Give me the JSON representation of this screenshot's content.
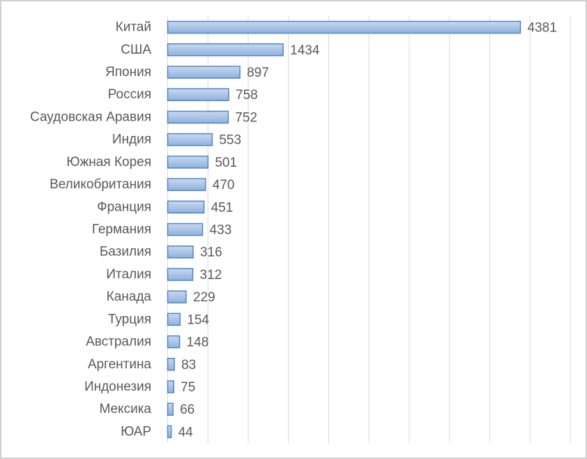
{
  "chart_data": {
    "type": "bar",
    "orientation": "horizontal",
    "title": "",
    "xlabel": "",
    "ylabel": "",
    "xlim": [
      0,
      5000
    ],
    "grid": "vertical",
    "legend": "none",
    "colors": {
      "bar_fill_light": "#c9d9ef",
      "bar_fill_dark": "#8fb1dd",
      "bar_stroke": "#4f86c6",
      "grid": "#d9d9d9",
      "text": "#595959",
      "border": "#bfbfbf"
    },
    "categories": [
      "Китай",
      "США",
      "Япония",
      "Россия",
      "Саудовская Аравия",
      "Индия",
      "Южная Корея",
      "Великобритания",
      "Франция",
      "Германия",
      "Базилия",
      "Италия",
      "Канада",
      "Турция",
      "Австралия",
      "Аргентина",
      "Индонезия",
      "Мексика",
      "ЮАР"
    ],
    "values": [
      4381,
      1434,
      897,
      758,
      752,
      553,
      501,
      470,
      451,
      433,
      316,
      312,
      229,
      154,
      148,
      83,
      75,
      66,
      44
    ]
  }
}
